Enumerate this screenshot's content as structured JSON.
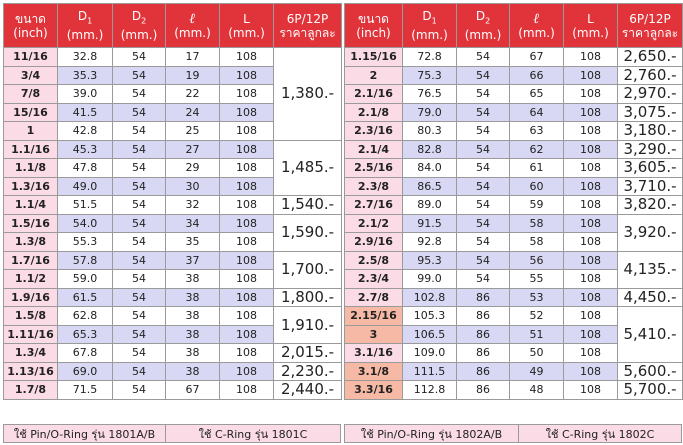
{
  "headers": {
    "size": [
      "ขนาด",
      "(inch)"
    ],
    "d1": [
      "D",
      "1",
      "(mm.)"
    ],
    "d2": [
      "D",
      "2",
      "(mm.)"
    ],
    "l_small": [
      "ℓ",
      "(mm.)"
    ],
    "l_big": [
      "L",
      "(mm.)"
    ],
    "price": [
      "6P/12P",
      "ราคาลูกละ"
    ]
  },
  "left_table": {
    "rows": [
      {
        "size": "11/16",
        "d1": "32.8",
        "d2": "54",
        "l": "17",
        "L": "108",
        "band": "A"
      },
      {
        "size": "3/4",
        "d1": "35.3",
        "d2": "54",
        "l": "19",
        "L": "108",
        "band": "B"
      },
      {
        "size": "7/8",
        "d1": "39.0",
        "d2": "54",
        "l": "22",
        "L": "108",
        "band": "A"
      },
      {
        "size": "15/16",
        "d1": "41.5",
        "d2": "54",
        "l": "24",
        "L": "108",
        "band": "B"
      },
      {
        "size": "1",
        "d1": "42.8",
        "d2": "54",
        "l": "25",
        "L": "108",
        "band": "A"
      },
      {
        "size": "1.1/16",
        "d1": "45.3",
        "d2": "54",
        "l": "27",
        "L": "108",
        "band": "B"
      },
      {
        "size": "1.1/8",
        "d1": "47.8",
        "d2": "54",
        "l": "29",
        "L": "108",
        "band": "A"
      },
      {
        "size": "1.3/16",
        "d1": "49.0",
        "d2": "54",
        "l": "30",
        "L": "108",
        "band": "B"
      },
      {
        "size": "1.1/4",
        "d1": "51.5",
        "d2": "54",
        "l": "32",
        "L": "108",
        "band": "A"
      },
      {
        "size": "1.5/16",
        "d1": "54.0",
        "d2": "54",
        "l": "34",
        "L": "108",
        "band": "B"
      },
      {
        "size": "1.3/8",
        "d1": "55.3",
        "d2": "54",
        "l": "35",
        "L": "108",
        "band": "A"
      },
      {
        "size": "1.7/16",
        "d1": "57.8",
        "d2": "54",
        "l": "37",
        "L": "108",
        "band": "B"
      },
      {
        "size": "1.1/2",
        "d1": "59.0",
        "d2": "54",
        "l": "38",
        "L": "108",
        "band": "A"
      },
      {
        "size": "1.9/16",
        "d1": "61.5",
        "d2": "54",
        "l": "38",
        "L": "108",
        "band": "B"
      },
      {
        "size": "1.5/8",
        "d1": "62.8",
        "d2": "54",
        "l": "38",
        "L": "108",
        "band": "A"
      },
      {
        "size": "1.11/16",
        "d1": "65.3",
        "d2": "54",
        "l": "38",
        "L": "108",
        "band": "B"
      },
      {
        "size": "1.3/4",
        "d1": "67.8",
        "d2": "54",
        "l": "38",
        "L": "108",
        "band": "A"
      },
      {
        "size": "1.13/16",
        "d1": "69.0",
        "d2": "54",
        "l": "38",
        "L": "108",
        "band": "B"
      },
      {
        "size": "1.7/8",
        "d1": "71.5",
        "d2": "54",
        "l": "67",
        "L": "108",
        "band": "A"
      }
    ],
    "prices": [
      {
        "start": 0,
        "span": 5,
        "value": "1,380.-"
      },
      {
        "start": 5,
        "span": 3,
        "value": "1,485.-"
      },
      {
        "start": 8,
        "span": 1,
        "value": "1,540.-"
      },
      {
        "start": 9,
        "span": 2,
        "value": "1,590.-"
      },
      {
        "start": 11,
        "span": 2,
        "value": "1,700.-"
      },
      {
        "start": 13,
        "span": 1,
        "value": "1,800.-"
      },
      {
        "start": 14,
        "span": 2,
        "value": "1,910.-"
      },
      {
        "start": 16,
        "span": 1,
        "value": "2,015.-"
      },
      {
        "start": 17,
        "span": 1,
        "value": "2,230.-"
      },
      {
        "start": 18,
        "span": 1,
        "value": "2,440.-"
      }
    ],
    "legend": [
      "ใช้ Pin/O-Ring รุ่น 1801A/B",
      "ใช้ C-Ring รุ่น 1801C"
    ]
  },
  "right_table": {
    "rows": [
      {
        "size": "1.15/16",
        "d1": "72.8",
        "d2": "54",
        "l": "67",
        "L": "108",
        "band": "A"
      },
      {
        "size": "2",
        "d1": "75.3",
        "d2": "54",
        "l": "66",
        "L": "108",
        "band": "B"
      },
      {
        "size": "2.1/16",
        "d1": "76.5",
        "d2": "54",
        "l": "65",
        "L": "108",
        "band": "A"
      },
      {
        "size": "2.1/8",
        "d1": "79.0",
        "d2": "54",
        "l": "64",
        "L": "108",
        "band": "B"
      },
      {
        "size": "2.3/16",
        "d1": "80.3",
        "d2": "54",
        "l": "63",
        "L": "108",
        "band": "A"
      },
      {
        "size": "2.1/4",
        "d1": "82.8",
        "d2": "54",
        "l": "62",
        "L": "108",
        "band": "B"
      },
      {
        "size": "2.5/16",
        "d1": "84.0",
        "d2": "54",
        "l": "61",
        "L": "108",
        "band": "A"
      },
      {
        "size": "2.3/8",
        "d1": "86.5",
        "d2": "54",
        "l": "60",
        "L": "108",
        "band": "B"
      },
      {
        "size": "2.7/16",
        "d1": "89.0",
        "d2": "54",
        "l": "59",
        "L": "108",
        "band": "A"
      },
      {
        "size": "2.1/2",
        "d1": "91.5",
        "d2": "54",
        "l": "58",
        "L": "108",
        "band": "B"
      },
      {
        "size": "2.9/16",
        "d1": "92.8",
        "d2": "54",
        "l": "58",
        "L": "108",
        "band": "A"
      },
      {
        "size": "2.5/8",
        "d1": "95.3",
        "d2": "54",
        "l": "56",
        "L": "108",
        "band": "B"
      },
      {
        "size": "2.3/4",
        "d1": "99.0",
        "d2": "54",
        "l": "55",
        "L": "108",
        "band": "A"
      },
      {
        "size": "2.7/8",
        "d1": "102.8",
        "d2": "86",
        "l": "53",
        "L": "108",
        "band": "B"
      },
      {
        "size": "2.15/16",
        "d1": "105.3",
        "d2": "86",
        "l": "52",
        "L": "108",
        "band": "A",
        "hl": true
      },
      {
        "size": "3",
        "d1": "106.5",
        "d2": "86",
        "l": "51",
        "L": "108",
        "band": "B",
        "hl": true
      },
      {
        "size": "3.1/16",
        "d1": "109.0",
        "d2": "86",
        "l": "50",
        "L": "108",
        "band": "A"
      },
      {
        "size": "3.1/8",
        "d1": "111.5",
        "d2": "86",
        "l": "49",
        "L": "108",
        "band": "B",
        "hl": true
      },
      {
        "size": "3.3/16",
        "d1": "112.8",
        "d2": "86",
        "l": "48",
        "L": "108",
        "band": "A",
        "hl": true
      }
    ],
    "prices": [
      {
        "start": 0,
        "span": 1,
        "value": "2,650.-"
      },
      {
        "start": 1,
        "span": 1,
        "value": "2,760.-"
      },
      {
        "start": 2,
        "span": 1,
        "value": "2,970.-"
      },
      {
        "start": 3,
        "span": 1,
        "value": "3,075.-"
      },
      {
        "start": 4,
        "span": 1,
        "value": "3,180.-"
      },
      {
        "start": 5,
        "span": 1,
        "value": "3,290.-"
      },
      {
        "start": 6,
        "span": 1,
        "value": "3,605.-"
      },
      {
        "start": 7,
        "span": 1,
        "value": "3,710.-"
      },
      {
        "start": 8,
        "span": 1,
        "value": "3,820.-"
      },
      {
        "start": 9,
        "span": 2,
        "value": "3,920.-"
      },
      {
        "start": 11,
        "span": 2,
        "value": "4,135.-"
      },
      {
        "start": 13,
        "span": 1,
        "value": "4,450.-"
      },
      {
        "start": 14,
        "span": 3,
        "value": "5,410.-"
      },
      {
        "start": 17,
        "span": 1,
        "value": "5,600.-"
      },
      {
        "start": 18,
        "span": 1,
        "value": "5,700.-"
      }
    ],
    "legend": [
      "ใช้ Pin/O-Ring รุ่น 1802A/B",
      "ใช้ C-Ring รุ่น 1802C"
    ]
  },
  "colors": {
    "header": "#e0343a",
    "size_cell": "#fadbe6",
    "size_cell_highlight": "#f5b9a6",
    "band_alt": "#d8d8f4"
  }
}
